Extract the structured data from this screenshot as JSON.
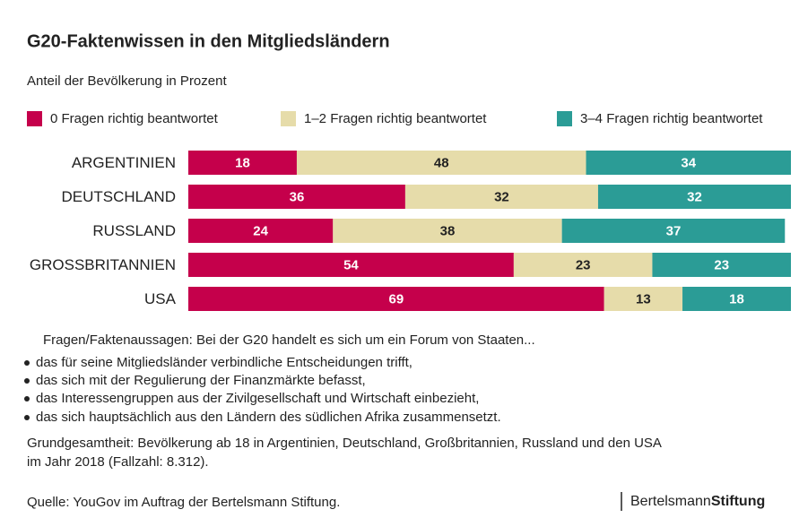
{
  "chart_data": {
    "type": "bar",
    "orientation": "horizontal",
    "stacked": true,
    "title": "G20-Faktenwissen in den Mitgliedsländern",
    "subtitle": "Anteil der Bevölkerung in Prozent",
    "categories": [
      "ARGENTINIEN",
      "DEUTSCHLAND",
      "RUSSLAND",
      "GROSSBRITANNIEN",
      "USA"
    ],
    "xlim": [
      0,
      100
    ],
    "series": [
      {
        "name": "0 Fragen richtig beantwortet",
        "color": "#c5004b",
        "label_color": "#ffffff",
        "values": [
          18,
          36,
          24,
          54,
          69
        ]
      },
      {
        "name": "1–2 Fragen richtig beantwortet",
        "color": "#e6dcaa",
        "label_color": "#222222",
        "values": [
          48,
          32,
          38,
          23,
          13
        ]
      },
      {
        "name": "3–4 Fragen richtig beantwortet",
        "color": "#2b9c96",
        "label_color": "#ffffff",
        "values": [
          34,
          32,
          37,
          23,
          18
        ]
      }
    ],
    "legend": "top"
  },
  "notes": {
    "intro": "Fragen/Faktenaussagen: Bei der G20 handelt es sich um ein Forum von Staaten...",
    "bullets": [
      "das für seine Mitgliedsländer verbindliche Entscheidungen trifft,",
      "das sich mit der Regulierung der Finanzmärkte befasst,",
      "das Interessengruppen aus der Zivilgesellschaft und Wirtschaft einbezieht,",
      "das sich hauptsächlich aus den Ländern des südlichen Afrika zusammensetzt."
    ],
    "population": [
      "Grundgesamtheit: Bevölkerung ab 18 in Argentinien, Deutschland, Großbritannien, Russland und den USA",
      "im Jahr 2018 (Fallzahl: 8.312)."
    ],
    "source": "Quelle: YouGov im Auftrag der Bertelsmann Stiftung."
  },
  "logo": [
    "Bertelsmann",
    "Stiftung"
  ]
}
